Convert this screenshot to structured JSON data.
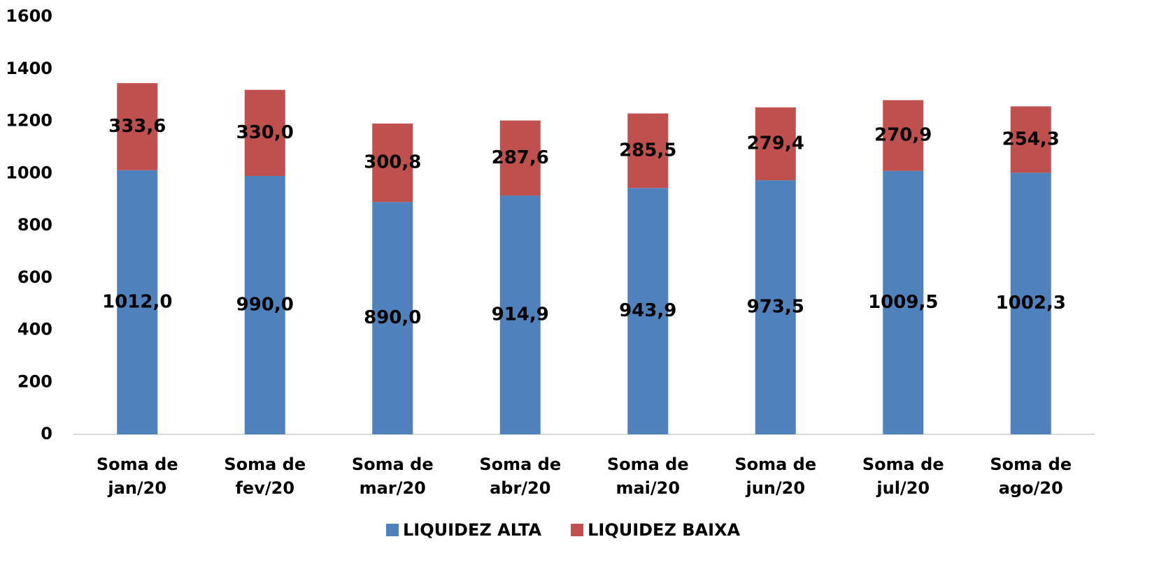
{
  "chart_data": {
    "type": "stacked_bar",
    "categories": [
      "Soma de jan/20",
      "Soma de fev/20",
      "Soma de mar/20",
      "Soma de abr/20",
      "Soma de mai/20",
      "Soma de jun/20",
      "Soma de jul/20",
      "Soma de ago/20"
    ],
    "series": [
      {
        "name": "LIQUIDEZ ALTA",
        "color": "#4f81bd",
        "values": [
          1012.0,
          990.0,
          890.0,
          914.9,
          943.9,
          973.5,
          1009.5,
          1002.3
        ],
        "value_labels": [
          "1012,0",
          "990,0",
          "890,0",
          "914,9",
          "943,9",
          "973,5",
          "1009,5",
          "1002,3"
        ]
      },
      {
        "name": "LIQUIDEZ BAIXA",
        "color": "#c0504d",
        "values": [
          333.6,
          330.0,
          300.8,
          287.6,
          285.5,
          279.4,
          270.9,
          254.3
        ],
        "value_labels": [
          "333,6",
          "330,0",
          "300,8",
          "287,6",
          "285,5",
          "279,4",
          "270,9",
          "254,3"
        ]
      }
    ],
    "ylim": [
      0,
      1600
    ],
    "yticks": [
      0,
      200,
      400,
      600,
      800,
      1000,
      1200,
      1400,
      1600
    ],
    "grid": false,
    "legend": "bottom"
  }
}
